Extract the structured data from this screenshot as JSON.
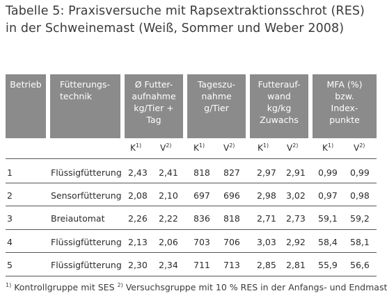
{
  "caption": "Tabelle 5: Praxisversuche mit Rapsextraktionsschrot (RES) in der Schweinemast (Weiß, Sommer und Weber 2008)",
  "headers": [
    "Betrieb",
    "Fütterungs-\ntechnik",
    "Ø Futter-\naufnahme\nkg/Tier +\nTag",
    "Tageszu-\nnahme\ng/Tier",
    "Futterauf-\nwand\nkg/kg\nZuwachs",
    "MFA (%)\nbzw.\nIndex-\npunkte"
  ],
  "sub": {
    "k": "K",
    "k_sup": "1)",
    "v": "V",
    "v_sup": "2)"
  },
  "rows": [
    [
      "1",
      "Flüssigfütterung",
      "2,43",
      "2,41",
      "818",
      "827",
      "2,97",
      "2,91",
      "0,99",
      "0,99"
    ],
    [
      "2",
      "Sensorfütterung",
      "2,08",
      "2,10",
      "697",
      "696",
      "2,98",
      "3,02",
      "0,97",
      "0,98"
    ],
    [
      "3",
      "Breiautomat",
      "2,26",
      "2,22",
      "836",
      "818",
      "2,71",
      "2,73",
      "59,1",
      "59,2"
    ],
    [
      "4",
      "Flüssigfütterung",
      "2,13",
      "2,06",
      "703",
      "706",
      "3,03",
      "2,92",
      "58,4",
      "58,1"
    ],
    [
      "5",
      "Flüssigfütterung",
      "2,30",
      "2,34",
      "711",
      "713",
      "2,85",
      "2,81",
      "55,9",
      "56,6"
    ]
  ],
  "footnote": {
    "mark1": "1)",
    "text1": " Kontrollgruppe mit SES ",
    "mark2": "2)",
    "text2": " Versuchsgruppe mit 10 % RES in der Anfangs- und Endmast"
  }
}
